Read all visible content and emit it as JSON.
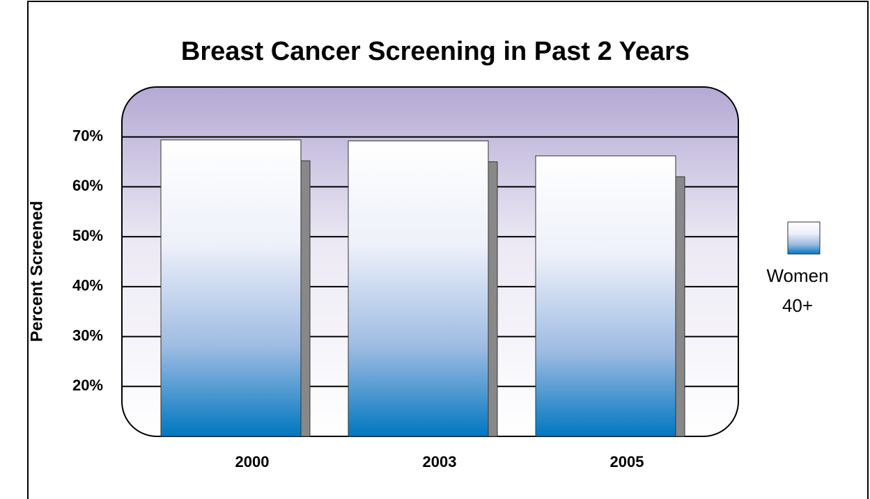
{
  "chart_data": {
    "type": "bar",
    "title": "Breast Cancer Screening in Past 2 Years",
    "y_label": "Percent Screened",
    "categories": [
      "2000",
      "2003",
      "2005"
    ],
    "series": [
      {
        "name": "Women 40+",
        "color": "#0077c0",
        "values": [
          69.4,
          69.2,
          66.2
        ]
      }
    ],
    "ylim": [
      10,
      80
    ],
    "yticks": [
      {
        "value": 20,
        "label": "20%"
      },
      {
        "value": 30,
        "label": "30%"
      },
      {
        "value": 40,
        "label": "40%"
      },
      {
        "value": 50,
        "label": "50%"
      },
      {
        "value": 60,
        "label": "60%"
      },
      {
        "value": 70,
        "label": "70%"
      }
    ],
    "grid": true,
    "legend": "right"
  }
}
